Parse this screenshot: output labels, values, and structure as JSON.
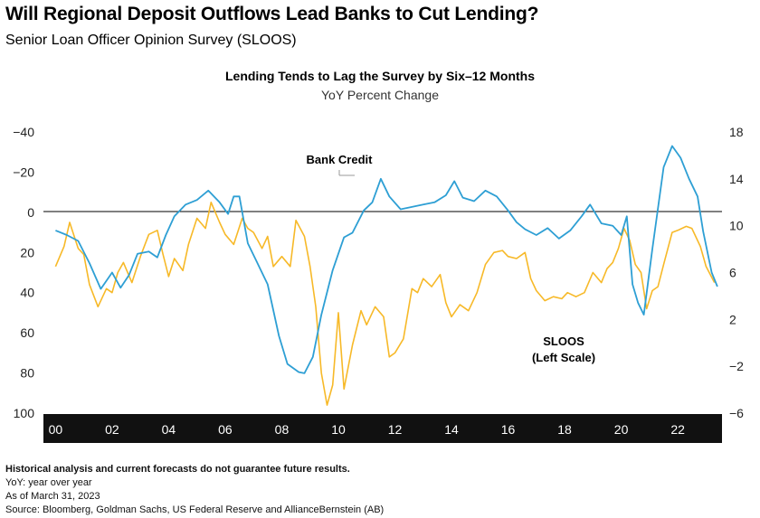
{
  "header": {
    "title": "Will Regional Deposit Outflows Lead Banks to Cut Lending?",
    "subtitle": "Senior Loan Officer Opinion Survey (SLOOS)"
  },
  "footer": {
    "disclaimer": "Historical analysis and current forecasts do not guarantee future results.",
    "note": "YoY: year over year",
    "asof": "As of March 31, 2023",
    "source": "Source: Bloomberg, Goldman Sachs, US Federal Reserve and AllianceBernstein (AB)"
  },
  "colors": {
    "bank_credit": "#2e9fd4",
    "sloos": "#f7b928",
    "axis_band": "#111111"
  },
  "chart_data": {
    "type": "line",
    "title": "Lending Tends to Lag the Survey by Six–12 Months",
    "subtitle": "YoY Percent Change",
    "x_ticks": [
      "00",
      "02",
      "04",
      "06",
      "08",
      "10",
      "12",
      "14",
      "16",
      "18",
      "20",
      "22"
    ],
    "left_axis": {
      "series": "SLOOS",
      "inverted": true,
      "ylim": [
        -40,
        100
      ],
      "ticks": [
        "−40",
        "−20",
        "0",
        "20",
        "40",
        "60",
        "80",
        "100"
      ]
    },
    "right_axis": {
      "series": "Bank Credit",
      "ylim": [
        -6,
        18
      ],
      "ticks": [
        "18",
        "14",
        "10",
        "6",
        "2",
        "−2",
        "−6"
      ]
    },
    "annotations": [
      {
        "text": "Bank Credit"
      },
      {
        "text": "SLOOS"
      },
      {
        "text": "(Left Scale)"
      }
    ],
    "series": [
      {
        "name": "Bank Credit",
        "axis": "right",
        "points": [
          [
            2000.0,
            9.6
          ],
          [
            2000.4,
            9.2
          ],
          [
            2000.8,
            8.7
          ],
          [
            2001.2,
            6.8
          ],
          [
            2001.6,
            4.6
          ],
          [
            2002.0,
            6.0
          ],
          [
            2002.3,
            4.7
          ],
          [
            2002.6,
            5.8
          ],
          [
            2002.9,
            7.6
          ],
          [
            2003.3,
            7.8
          ],
          [
            2003.6,
            7.3
          ],
          [
            2003.9,
            9.2
          ],
          [
            2004.2,
            10.8
          ],
          [
            2004.6,
            11.8
          ],
          [
            2005.0,
            12.2
          ],
          [
            2005.4,
            13.0
          ],
          [
            2005.8,
            12.0
          ],
          [
            2006.1,
            11.0
          ],
          [
            2006.3,
            12.5
          ],
          [
            2006.5,
            12.5
          ],
          [
            2006.8,
            8.5
          ],
          [
            2007.1,
            7.0
          ],
          [
            2007.5,
            5.0
          ],
          [
            2007.9,
            0.6
          ],
          [
            2008.2,
            -1.8
          ],
          [
            2008.6,
            -2.5
          ],
          [
            2008.8,
            -2.6
          ],
          [
            2009.1,
            -1.2
          ],
          [
            2009.4,
            2.4
          ],
          [
            2009.8,
            6.2
          ],
          [
            2010.2,
            9.0
          ],
          [
            2010.5,
            9.4
          ],
          [
            2010.9,
            11.3
          ],
          [
            2011.2,
            12.0
          ],
          [
            2011.5,
            14.0
          ],
          [
            2011.8,
            12.5
          ],
          [
            2012.2,
            11.4
          ],
          [
            2012.6,
            11.6
          ],
          [
            2013.0,
            11.8
          ],
          [
            2013.4,
            12.0
          ],
          [
            2013.8,
            12.6
          ],
          [
            2014.1,
            13.8
          ],
          [
            2014.4,
            12.4
          ],
          [
            2014.8,
            12.1
          ],
          [
            2015.2,
            13.0
          ],
          [
            2015.6,
            12.5
          ],
          [
            2016.0,
            11.3
          ],
          [
            2016.3,
            10.3
          ],
          [
            2016.6,
            9.7
          ],
          [
            2017.0,
            9.2
          ],
          [
            2017.4,
            9.8
          ],
          [
            2017.8,
            8.9
          ],
          [
            2018.2,
            9.6
          ],
          [
            2018.6,
            10.8
          ],
          [
            2018.9,
            11.8
          ],
          [
            2019.3,
            10.2
          ],
          [
            2019.7,
            10.0
          ],
          [
            2020.0,
            9.2
          ],
          [
            2020.2,
            10.8
          ],
          [
            2020.4,
            5.0
          ],
          [
            2020.6,
            3.4
          ],
          [
            2020.8,
            2.4
          ],
          [
            2021.1,
            8.0
          ],
          [
            2021.5,
            15.0
          ],
          [
            2021.8,
            16.8
          ],
          [
            2022.1,
            15.8
          ],
          [
            2022.4,
            14.0
          ],
          [
            2022.7,
            12.5
          ],
          [
            2022.9,
            9.5
          ],
          [
            2023.2,
            6.0
          ],
          [
            2023.4,
            4.8
          ]
        ]
      },
      {
        "name": "SLOOS",
        "axis": "left",
        "points": [
          [
            2000.0,
            27
          ],
          [
            2000.3,
            17
          ],
          [
            2000.5,
            5
          ],
          [
            2000.8,
            18
          ],
          [
            2001.0,
            21
          ],
          [
            2001.2,
            36
          ],
          [
            2001.5,
            47
          ],
          [
            2001.8,
            38
          ],
          [
            2002.0,
            40
          ],
          [
            2002.2,
            30
          ],
          [
            2002.4,
            25
          ],
          [
            2002.7,
            35
          ],
          [
            2003.0,
            22
          ],
          [
            2003.3,
            11
          ],
          [
            2003.6,
            9
          ],
          [
            2003.8,
            21
          ],
          [
            2004.0,
            32
          ],
          [
            2004.2,
            23
          ],
          [
            2004.5,
            29
          ],
          [
            2004.7,
            16
          ],
          [
            2005.0,
            3
          ],
          [
            2005.3,
            8
          ],
          [
            2005.5,
            -5
          ],
          [
            2005.8,
            5
          ],
          [
            2006.0,
            11
          ],
          [
            2006.3,
            16
          ],
          [
            2006.6,
            3
          ],
          [
            2006.8,
            8
          ],
          [
            2007.0,
            10
          ],
          [
            2007.3,
            18
          ],
          [
            2007.5,
            12
          ],
          [
            2007.7,
            27
          ],
          [
            2008.0,
            22
          ],
          [
            2008.3,
            27
          ],
          [
            2008.5,
            4
          ],
          [
            2008.8,
            12
          ],
          [
            2009.0,
            27
          ],
          [
            2009.2,
            47
          ],
          [
            2009.4,
            80
          ],
          [
            2009.6,
            96
          ],
          [
            2009.8,
            86
          ],
          [
            2010.0,
            50
          ],
          [
            2010.2,
            88
          ],
          [
            2010.5,
            66
          ],
          [
            2010.8,
            49
          ],
          [
            2011.0,
            56
          ],
          [
            2011.3,
            47
          ],
          [
            2011.6,
            52
          ],
          [
            2011.8,
            72
          ],
          [
            2012.0,
            70
          ],
          [
            2012.3,
            63
          ],
          [
            2012.6,
            38
          ],
          [
            2012.8,
            40
          ],
          [
            2013.0,
            33
          ],
          [
            2013.3,
            37
          ],
          [
            2013.6,
            31
          ],
          [
            2013.8,
            45
          ],
          [
            2014.0,
            52
          ],
          [
            2014.3,
            46
          ],
          [
            2014.6,
            49
          ],
          [
            2014.9,
            40
          ],
          [
            2015.2,
            26
          ],
          [
            2015.5,
            20
          ],
          [
            2015.8,
            19
          ],
          [
            2016.0,
            22
          ],
          [
            2016.3,
            23
          ],
          [
            2016.6,
            20
          ],
          [
            2016.8,
            33
          ],
          [
            2017.0,
            39
          ],
          [
            2017.3,
            44
          ],
          [
            2017.6,
            42
          ],
          [
            2017.9,
            43
          ],
          [
            2018.1,
            40
          ],
          [
            2018.4,
            42
          ],
          [
            2018.7,
            40
          ],
          [
            2019.0,
            30
          ],
          [
            2019.3,
            35
          ],
          [
            2019.5,
            28
          ],
          [
            2019.7,
            25
          ],
          [
            2019.9,
            18
          ],
          [
            2020.1,
            8
          ],
          [
            2020.3,
            14
          ],
          [
            2020.5,
            26
          ],
          [
            2020.7,
            30
          ],
          [
            2020.9,
            48
          ],
          [
            2021.1,
            39
          ],
          [
            2021.3,
            37
          ],
          [
            2021.5,
            26
          ],
          [
            2021.8,
            10
          ],
          [
            2022.0,
            9
          ],
          [
            2022.3,
            7
          ],
          [
            2022.5,
            8
          ],
          [
            2022.8,
            17
          ],
          [
            2023.0,
            27
          ],
          [
            2023.3,
            35
          ]
        ]
      }
    ]
  }
}
